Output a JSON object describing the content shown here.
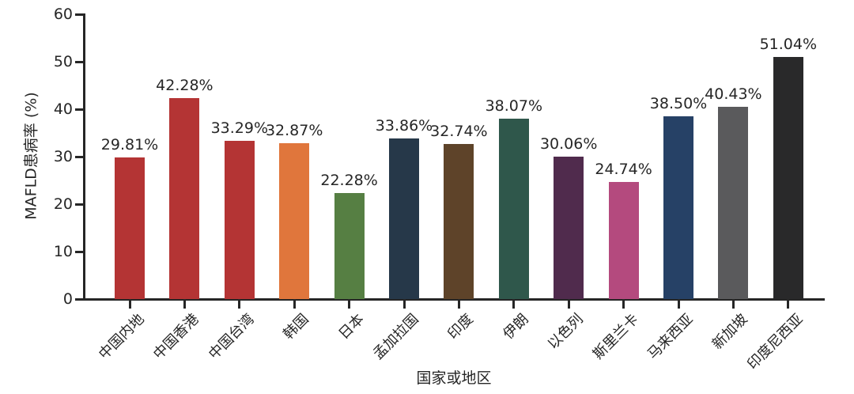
{
  "chart_data": {
    "type": "bar",
    "title": "",
    "xlabel": "国家或地区",
    "ylabel": "MAFLD患病率 (%)",
    "ylim": [
      0,
      60
    ],
    "yticks": [
      0,
      10,
      20,
      30,
      40,
      50,
      60
    ],
    "grid": false,
    "legend": null,
    "categories": [
      "中国内地",
      "中国香港",
      "中国台湾",
      "韩国",
      "日本",
      "孟加拉国",
      "印度",
      "伊朗",
      "以色列",
      "斯里兰卡",
      "马来西亚",
      "新加坡",
      "印度尼西亚"
    ],
    "values": [
      29.81,
      42.28,
      33.29,
      32.87,
      22.28,
      33.86,
      32.74,
      38.07,
      30.06,
      24.74,
      38.5,
      40.43,
      51.04
    ],
    "value_labels": [
      "29.81%",
      "42.28%",
      "33.29%",
      "32.87%",
      "22.28%",
      "33.86%",
      "32.74%",
      "38.07%",
      "30.06%",
      "24.74%",
      "38.50%",
      "40.43%",
      "51.04%"
    ],
    "bar_colors": [
      "#b43434",
      "#b43434",
      "#b43434",
      "#e0763c",
      "#567f43",
      "#263849",
      "#5e4329",
      "#2f574b",
      "#502b4d",
      "#b44a7e",
      "#264166",
      "#5a5a5c",
      "#29292a"
    ],
    "axis_color": "#262626",
    "text_color": "#262626",
    "background_color": "#ffffff"
  }
}
